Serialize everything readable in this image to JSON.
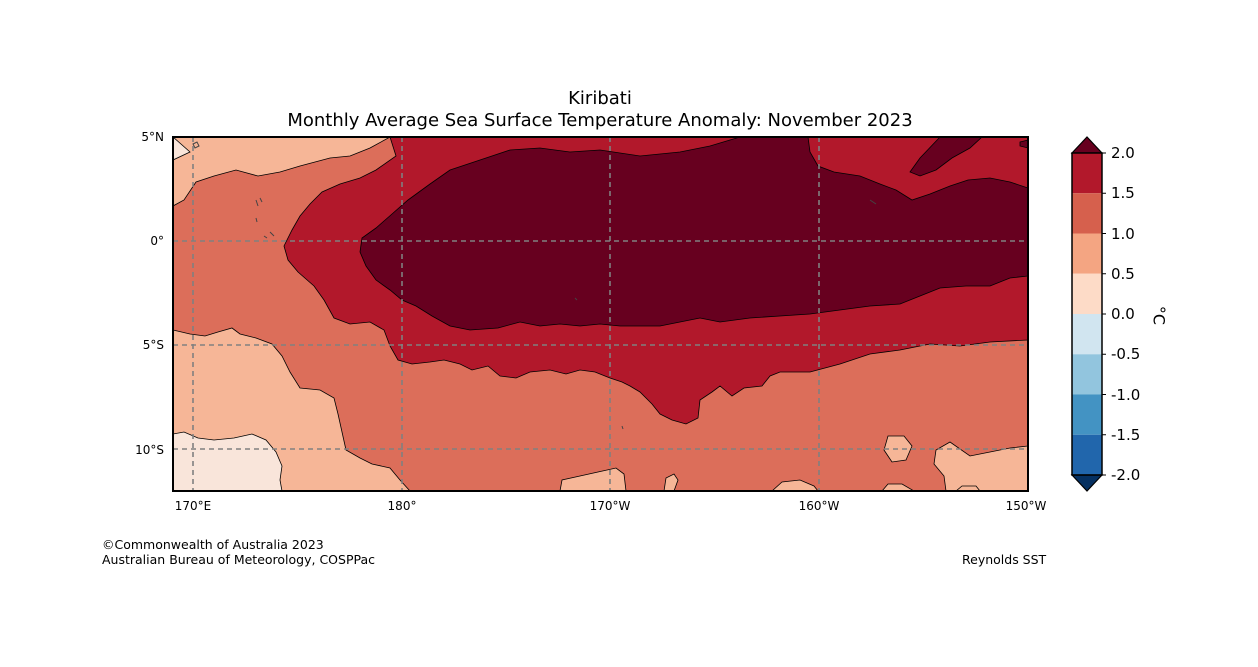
{
  "title": {
    "line1": "Kiribati",
    "line2": "Monthly Average Sea Surface Temperature Anomaly: November 2023"
  },
  "map": {
    "lat_labels": [
      "5°N",
      "0°",
      "5°S",
      "10°S"
    ],
    "lon_labels": [
      "170°E",
      "180°",
      "170°W",
      "160°W",
      "150°W"
    ],
    "lat_range": [
      -12,
      5
    ],
    "lon_range": [
      169,
      210
    ],
    "gridlines": "dashed"
  },
  "colorbar": {
    "unit": "°C",
    "ticks": [
      "2.0",
      "1.5",
      "1.0",
      "0.5",
      "0.0",
      "-0.5",
      "-1.0",
      "-1.5",
      "-2.0"
    ],
    "colors_top_to_bottom": [
      "#67001f",
      "#b2182b",
      "#d6604d",
      "#f4a582",
      "#fddbc7",
      "#d1e5f0",
      "#92c5de",
      "#4393c3",
      "#2166ac",
      "#053061"
    ]
  },
  "colors": {
    "level_2_plus": "#67001f",
    "level_1_5": "#b2182b",
    "level_1_0": "#dc6e5a",
    "level_0_5": "#f6b697",
    "level_0_0": "#f9e5da",
    "grid": "#808080"
  },
  "credits": {
    "copyright": "©Commonwealth of Australia 2023",
    "agency": "Australian Bureau of Meteorology, COSPPac",
    "source": "Reynolds SST"
  }
}
